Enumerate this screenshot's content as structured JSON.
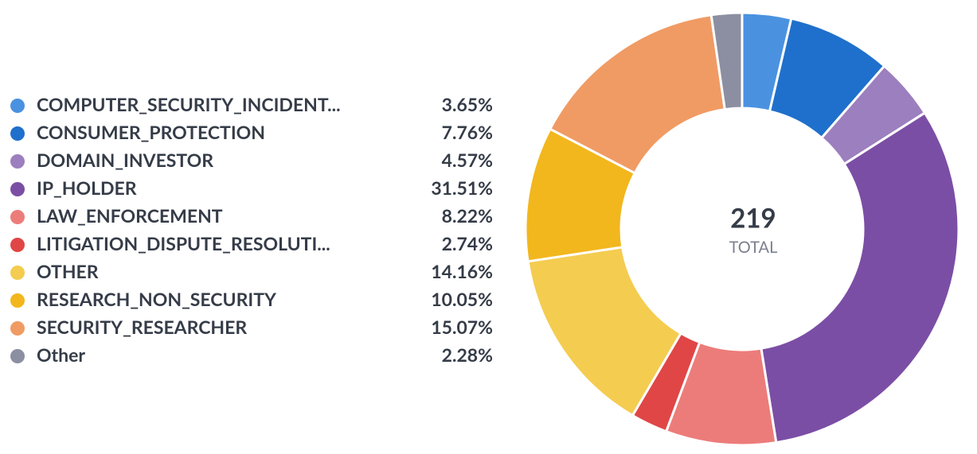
{
  "chart_data": {
    "type": "pie",
    "categories": [
      "COMPUTER_SECURITY_INCIDENT...",
      "CONSUMER_PROTECTION",
      "DOMAIN_INVESTOR",
      "IP_HOLDER",
      "LAW_ENFORCEMENT",
      "LITIGATION_DISPUTE_RESOLUTI...",
      "OTHER",
      "RESEARCH_NON_SECURITY",
      "SECURITY_RESEARCHER",
      "Other"
    ],
    "values": [
      3.65,
      7.76,
      4.57,
      31.51,
      8.22,
      2.74,
      14.16,
      10.05,
      15.07,
      2.28
    ],
    "value_labels": [
      "3.65%",
      "7.76%",
      "4.57%",
      "31.51%",
      "8.22%",
      "2.74%",
      "14.16%",
      "10.05%",
      "15.07%",
      "2.28%"
    ],
    "colors": [
      "#4a92e0",
      "#1f70cc",
      "#9c7fbe",
      "#7b4ea5",
      "#ec7c7a",
      "#e04646",
      "#f4cc50",
      "#f2b71d",
      "#f09b64",
      "#8b8fa1"
    ],
    "total": 219,
    "total_label": "TOTAL",
    "donut": true
  }
}
